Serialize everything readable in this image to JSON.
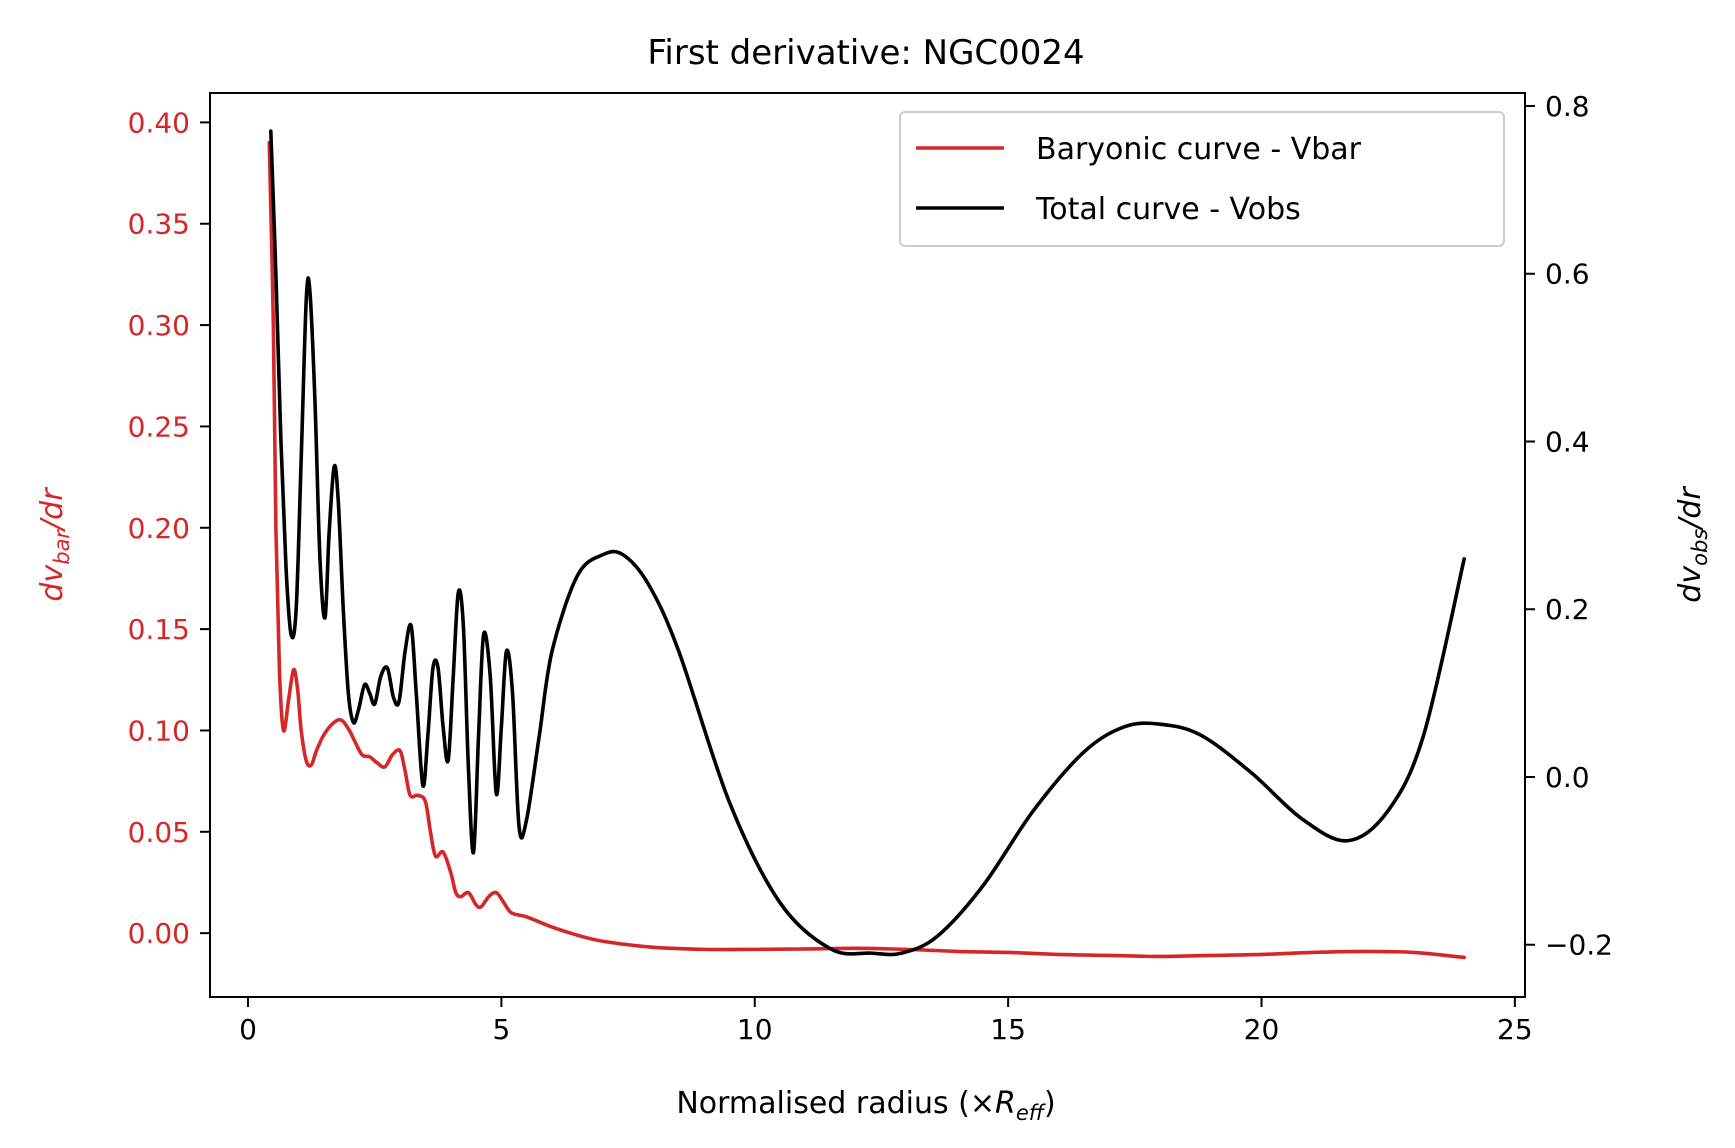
{
  "chart_data": {
    "type": "line",
    "title": "First derivative: NGC0024",
    "xlabel_prefix": "Normalised radius (×",
    "xlabel_sym": "R",
    "xlabel_sub": "eff",
    "xlabel_suffix": ")",
    "ylabel_left_pre": "dv",
    "ylabel_left_sub": "bar",
    "ylabel_left_post": "/dr",
    "ylabel_right_pre": "dv",
    "ylabel_right_sub": "obs",
    "ylabel_right_post": "/dr",
    "xlim": [
      -0.75,
      25.2
    ],
    "ylim_left": [
      -0.0315,
      0.4145
    ],
    "ylim_right": [
      -0.2623,
      0.8155
    ],
    "xticks": [
      0,
      5,
      10,
      15,
      20,
      25
    ],
    "xtick_labels": [
      "0",
      "5",
      "10",
      "15",
      "20",
      "25"
    ],
    "yticks_left": [
      0.0,
      0.05,
      0.1,
      0.15,
      0.2,
      0.25,
      0.3,
      0.35,
      0.4
    ],
    "ytick_labels_left": [
      "0.00",
      "0.05",
      "0.10",
      "0.15",
      "0.20",
      "0.25",
      "0.30",
      "0.35",
      "0.40"
    ],
    "yticks_right": [
      -0.2,
      0.0,
      0.2,
      0.4,
      0.6,
      0.8
    ],
    "ytick_labels_right": [
      "−0.2",
      "0.0",
      "0.2",
      "0.4",
      "0.6",
      "0.8"
    ],
    "left_axis_color": "#d62728",
    "right_axis_color": "#000000",
    "grid": false,
    "legend_position": "upper right",
    "series": [
      {
        "name": "Baryonic curve - Vbar",
        "axis": "left",
        "color": "#d62728",
        "x": [
          0.42,
          0.5,
          0.55,
          0.62,
          0.7,
          0.8,
          0.9,
          0.98,
          1.05,
          1.15,
          1.25,
          1.35,
          1.5,
          1.7,
          1.85,
          2.0,
          2.1,
          2.25,
          2.4,
          2.55,
          2.7,
          2.85,
          3.0,
          3.1,
          3.2,
          3.35,
          3.5,
          3.6,
          3.7,
          3.85,
          4.0,
          4.1,
          4.2,
          4.35,
          4.5,
          4.6,
          4.75,
          4.9,
          5.05,
          5.2,
          5.5,
          6.0,
          6.5,
          7.0,
          8.0,
          9.0,
          10.0,
          11.0,
          12.0,
          13.0,
          14.0,
          15.0,
          16.0,
          17.0,
          18.0,
          19.0,
          20.0,
          21.0,
          22.0,
          23.0,
          24.0
        ],
        "y": [
          0.39,
          0.3,
          0.2,
          0.13,
          0.1,
          0.115,
          0.13,
          0.12,
          0.1,
          0.085,
          0.083,
          0.09,
          0.098,
          0.104,
          0.105,
          0.1,
          0.095,
          0.088,
          0.087,
          0.084,
          0.082,
          0.088,
          0.09,
          0.08,
          0.068,
          0.068,
          0.065,
          0.05,
          0.038,
          0.04,
          0.03,
          0.02,
          0.018,
          0.02,
          0.014,
          0.013,
          0.018,
          0.02,
          0.015,
          0.01,
          0.008,
          0.003,
          -0.001,
          -0.004,
          -0.007,
          -0.008,
          -0.008,
          -0.0078,
          -0.0075,
          -0.008,
          -0.009,
          -0.0095,
          -0.0105,
          -0.011,
          -0.0115,
          -0.011,
          -0.0105,
          -0.0095,
          -0.009,
          -0.0095,
          -0.012
        ]
      },
      {
        "name": "Total curve - Vobs",
        "axis": "right",
        "color": "#000000",
        "x": [
          0.45,
          0.55,
          0.65,
          0.75,
          0.85,
          0.95,
          1.05,
          1.15,
          1.22,
          1.32,
          1.42,
          1.52,
          1.6,
          1.7,
          1.78,
          1.88,
          1.98,
          2.08,
          2.18,
          2.3,
          2.4,
          2.5,
          2.62,
          2.75,
          2.87,
          2.98,
          3.1,
          3.22,
          3.32,
          3.45,
          3.55,
          3.65,
          3.75,
          3.85,
          3.95,
          4.05,
          4.15,
          4.25,
          4.35,
          4.45,
          4.55,
          4.65,
          4.78,
          4.9,
          5.0,
          5.1,
          5.22,
          5.35,
          5.5,
          5.75,
          6.0,
          6.5,
          7.0,
          7.4,
          7.9,
          8.5,
          9.5,
          10.5,
          11.5,
          12.3,
          12.9,
          13.6,
          14.5,
          15.5,
          16.5,
          17.3,
          18.0,
          18.8,
          19.8,
          20.8,
          21.7,
          22.5,
          23.2,
          24.0
        ],
        "y": [
          0.77,
          0.6,
          0.4,
          0.25,
          0.17,
          0.2,
          0.38,
          0.57,
          0.58,
          0.45,
          0.26,
          0.19,
          0.29,
          0.37,
          0.33,
          0.2,
          0.1,
          0.065,
          0.08,
          0.11,
          0.1,
          0.087,
          0.12,
          0.13,
          0.095,
          0.09,
          0.15,
          0.18,
          0.1,
          -0.01,
          0.05,
          0.13,
          0.13,
          0.06,
          0.02,
          0.12,
          0.22,
          0.18,
          0.01,
          -0.09,
          0.05,
          0.17,
          0.12,
          -0.02,
          0.06,
          0.15,
          0.1,
          -0.06,
          -0.05,
          0.05,
          0.15,
          0.24,
          0.265,
          0.265,
          0.23,
          0.15,
          -0.03,
          -0.15,
          -0.205,
          -0.21,
          -0.21,
          -0.19,
          -0.13,
          -0.04,
          0.03,
          0.06,
          0.063,
          0.05,
          0.005,
          -0.05,
          -0.076,
          -0.04,
          0.05,
          0.26
        ]
      }
    ]
  }
}
